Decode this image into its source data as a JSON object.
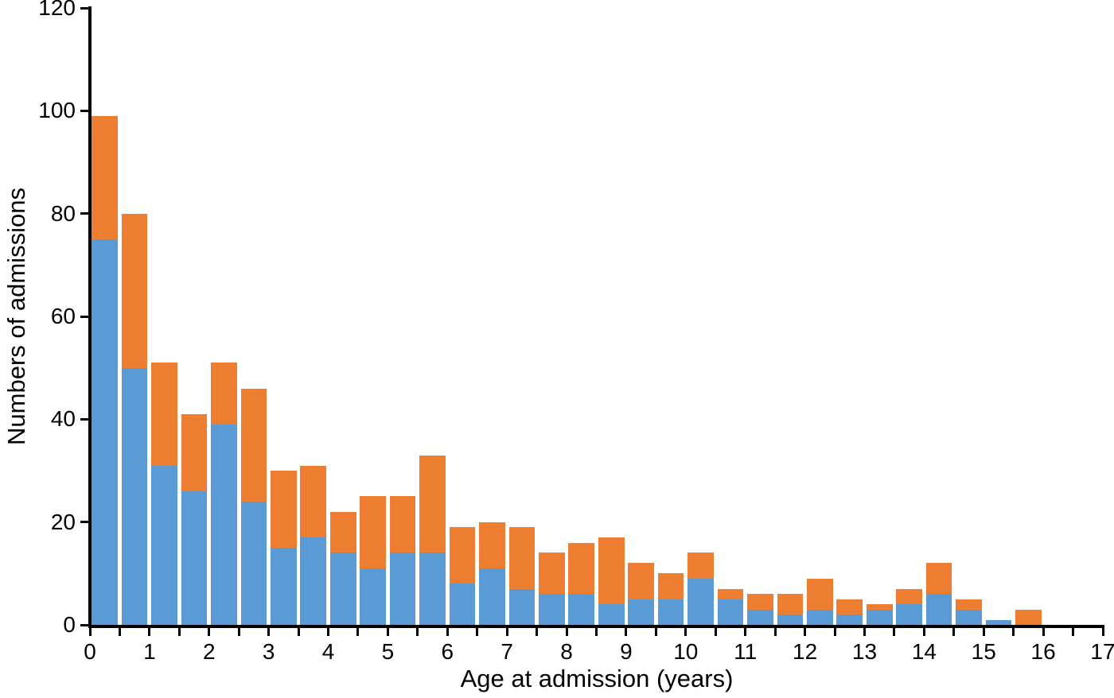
{
  "chart_data": {
    "type": "bar",
    "stacked": true,
    "title": "",
    "xlabel": "Age at admission (years)",
    "ylabel": "Numbers of admissions",
    "x_bin_start_age_years": [
      0,
      0.5,
      1,
      1.5,
      2,
      2.5,
      3,
      3.5,
      4,
      4.5,
      5,
      5.5,
      6,
      6.5,
      7,
      7.5,
      8,
      8.5,
      9,
      9.5,
      10,
      10.5,
      11,
      11.5,
      12,
      12.5,
      13,
      13.5,
      14,
      14.5,
      15,
      15.5
    ],
    "bin_width_years": 0.5,
    "series": [
      {
        "name": "blue-bottom-segment",
        "color": "#5B9BD5",
        "values": [
          75,
          50,
          31,
          26,
          39,
          24,
          15,
          17,
          14,
          11,
          14,
          14,
          8,
          11,
          7,
          6,
          6,
          4,
          5,
          5,
          9,
          5,
          3,
          2,
          3,
          2,
          3,
          4,
          6,
          3,
          1,
          0
        ]
      },
      {
        "name": "orange-top-segment",
        "color": "#ED7D31",
        "values": [
          24,
          30,
          20,
          15,
          12,
          22,
          15,
          14,
          8,
          14,
          11,
          19,
          11,
          9,
          12,
          8,
          10,
          13,
          7,
          5,
          5,
          2,
          3,
          4,
          6,
          3,
          1,
          3,
          6,
          2,
          0,
          3
        ]
      }
    ],
    "stacked_totals": [
      99,
      80,
      51,
      41,
      51,
      46,
      30,
      31,
      22,
      25,
      25,
      33,
      19,
      20,
      19,
      14,
      16,
      17,
      12,
      10,
      14,
      7,
      6,
      6,
      9,
      5,
      4,
      7,
      12,
      5,
      1,
      3
    ],
    "xlim": [
      0,
      17
    ],
    "ylim": [
      0,
      120
    ],
    "xtick_labels": [
      "0",
      "1",
      "2",
      "3",
      "4",
      "5",
      "6",
      "7",
      "8",
      "9",
      "10",
      "11",
      "12",
      "13",
      "14",
      "15",
      "16",
      "17"
    ],
    "ytick_labels": [
      "0",
      "20",
      "40",
      "60",
      "80",
      "100",
      "120"
    ],
    "ytick_values": [
      0,
      20,
      40,
      60,
      80,
      100,
      120
    ],
    "minor_xtick_step_years": 0.5,
    "grid": false,
    "legend": false,
    "axis_color": "#000000",
    "text_color": "#000000"
  }
}
